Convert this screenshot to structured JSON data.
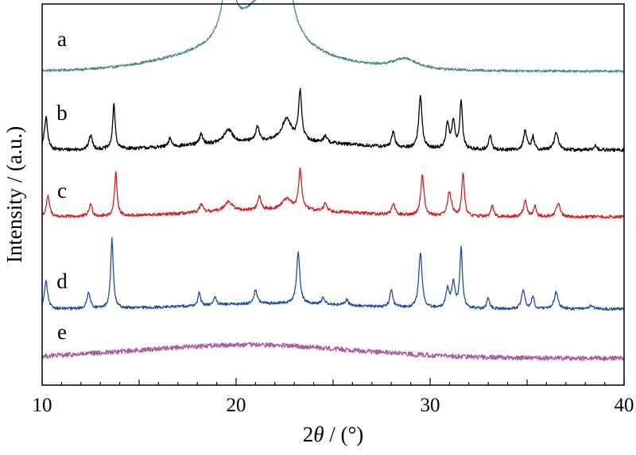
{
  "chart_data": {
    "type": "line",
    "title": "",
    "xlabel_prefix": "2",
    "xlabel_symbol": "θ",
    "xlabel_suffix": " / (°)",
    "ylabel": "Intensity / (a.u.)",
    "xlim": [
      10,
      40
    ],
    "xticks": [
      10,
      20,
      30,
      40
    ],
    "x_minor_step": 1,
    "y_ticks_shown": false,
    "grid": false,
    "legend": "none",
    "series": [
      {
        "label": "a",
        "color": "#4a8a88",
        "baseline": 0.05,
        "noise": 0.006,
        "peaks": [
          [
            19.6,
            0.33,
            0.35
          ],
          [
            21.2,
            0.18,
            1.2
          ],
          [
            22.3,
            0.28,
            0.6
          ],
          [
            22.6,
            0.2,
            0.25
          ],
          [
            28.7,
            0.05,
            0.8
          ]
        ],
        "hump": [
          20.5,
          0.1,
          3.5
        ]
      },
      {
        "label": "b",
        "color": "#000000",
        "baseline": 0.07,
        "noise": 0.012,
        "peaks": [
          [
            10.2,
            0.22,
            0.1
          ],
          [
            12.5,
            0.1,
            0.1
          ],
          [
            13.7,
            0.3,
            0.08
          ],
          [
            16.6,
            0.06,
            0.08
          ],
          [
            18.2,
            0.07,
            0.1
          ],
          [
            19.6,
            0.09,
            0.25
          ],
          [
            21.1,
            0.1,
            0.1
          ],
          [
            22.6,
            0.15,
            0.3
          ],
          [
            23.3,
            0.33,
            0.1
          ],
          [
            24.6,
            0.05,
            0.1
          ],
          [
            28.1,
            0.1,
            0.1
          ],
          [
            29.5,
            0.36,
            0.1
          ],
          [
            30.9,
            0.17,
            0.1
          ],
          [
            31.2,
            0.18,
            0.1
          ],
          [
            31.6,
            0.33,
            0.08
          ],
          [
            33.1,
            0.1,
            0.08
          ],
          [
            34.9,
            0.13,
            0.1
          ],
          [
            35.3,
            0.09,
            0.08
          ],
          [
            36.5,
            0.12,
            0.12
          ],
          [
            38.5,
            0.03,
            0.1
          ]
        ],
        "hump": [
          22.0,
          0.06,
          4.0
        ]
      },
      {
        "label": "c",
        "color": "#d42020",
        "baseline": 0.07,
        "noise": 0.012,
        "peaks": [
          [
            10.3,
            0.15,
            0.1
          ],
          [
            12.5,
            0.09,
            0.1
          ],
          [
            13.8,
            0.32,
            0.08
          ],
          [
            18.2,
            0.06,
            0.1
          ],
          [
            19.6,
            0.07,
            0.25
          ],
          [
            21.2,
            0.1,
            0.1
          ],
          [
            22.6,
            0.08,
            0.3
          ],
          [
            23.3,
            0.29,
            0.1
          ],
          [
            24.6,
            0.06,
            0.1
          ],
          [
            28.1,
            0.08,
            0.1
          ],
          [
            29.6,
            0.3,
            0.1
          ],
          [
            31.0,
            0.18,
            0.12
          ],
          [
            31.7,
            0.32,
            0.08
          ],
          [
            33.2,
            0.08,
            0.08
          ],
          [
            34.9,
            0.12,
            0.1
          ],
          [
            35.4,
            0.08,
            0.08
          ],
          [
            36.6,
            0.1,
            0.12
          ]
        ],
        "hump": [
          22.0,
          0.05,
          4.0
        ]
      },
      {
        "label": "d",
        "color": "#1f4e9e",
        "baseline": 0.05,
        "noise": 0.01,
        "peaks": [
          [
            10.2,
            0.2,
            0.1
          ],
          [
            12.4,
            0.12,
            0.1
          ],
          [
            13.6,
            0.5,
            0.08
          ],
          [
            18.1,
            0.09,
            0.08
          ],
          [
            18.9,
            0.06,
            0.08
          ],
          [
            21.0,
            0.1,
            0.1
          ],
          [
            23.2,
            0.37,
            0.1
          ],
          [
            24.5,
            0.05,
            0.1
          ],
          [
            25.7,
            0.04,
            0.1
          ],
          [
            28.0,
            0.12,
            0.1
          ],
          [
            29.5,
            0.4,
            0.1
          ],
          [
            30.9,
            0.14,
            0.1
          ],
          [
            31.2,
            0.18,
            0.1
          ],
          [
            31.6,
            0.43,
            0.08
          ],
          [
            33.0,
            0.08,
            0.08
          ],
          [
            34.8,
            0.14,
            0.1
          ],
          [
            35.3,
            0.09,
            0.08
          ],
          [
            36.5,
            0.12,
            0.12
          ],
          [
            38.3,
            0.03,
            0.1
          ]
        ],
        "hump": [
          22.0,
          0.04,
          4.0
        ]
      },
      {
        "label": "e",
        "color": "#a85b9e",
        "baseline": 0.04,
        "noise": 0.018,
        "peaks": [],
        "hump": [
          20.5,
          0.1,
          5.5
        ]
      }
    ]
  }
}
